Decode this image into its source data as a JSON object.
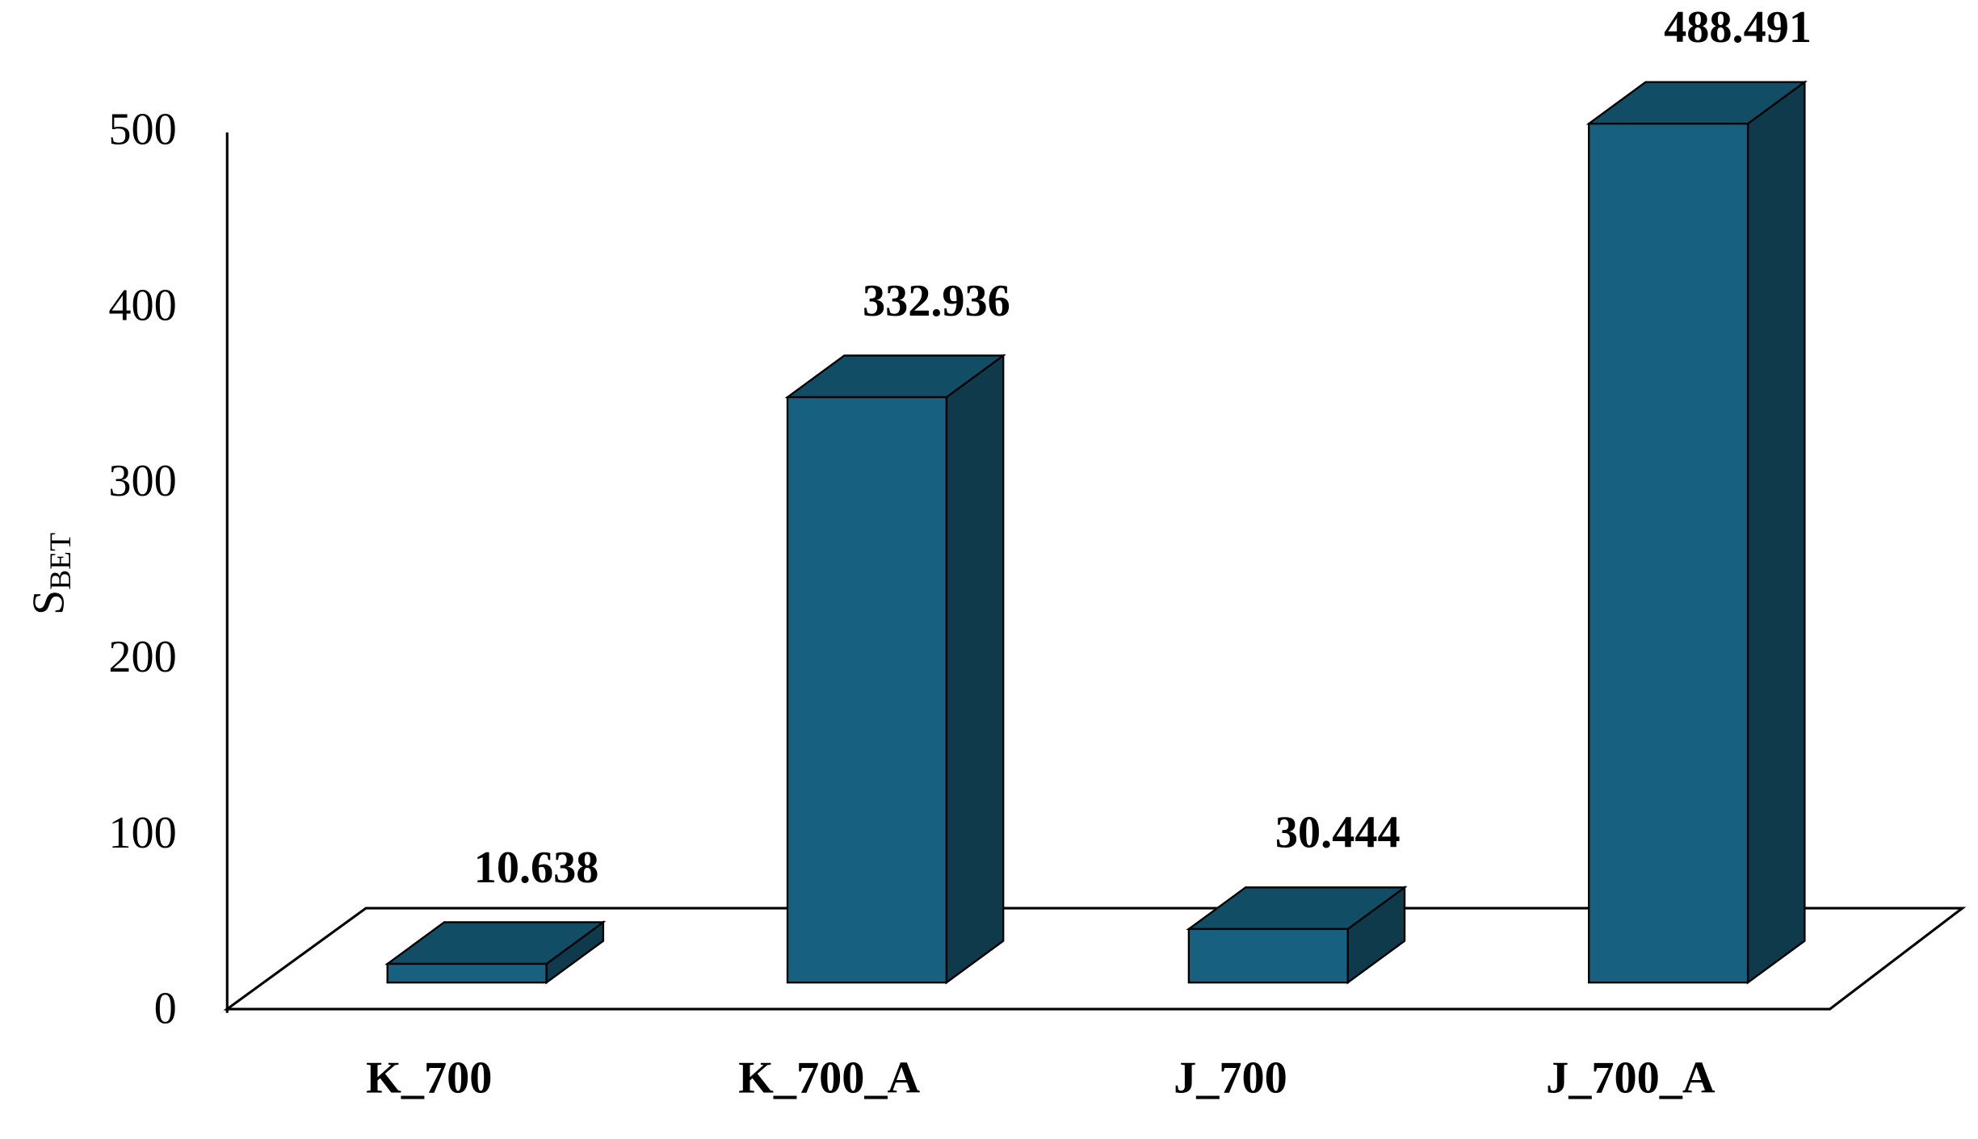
{
  "chart_data": {
    "type": "bar3d",
    "ylabel": "S",
    "ylabel_subscript": "BET",
    "categories": [
      "K_700",
      "K_700_A",
      "J_700",
      "J_700_A"
    ],
    "values": [
      10.638,
      332.936,
      30.444,
      488.491
    ],
    "color": "#17607f",
    "ylim": [
      0,
      500
    ],
    "yticks": [
      0,
      100,
      200,
      300,
      400,
      500
    ],
    "grid": false
  }
}
